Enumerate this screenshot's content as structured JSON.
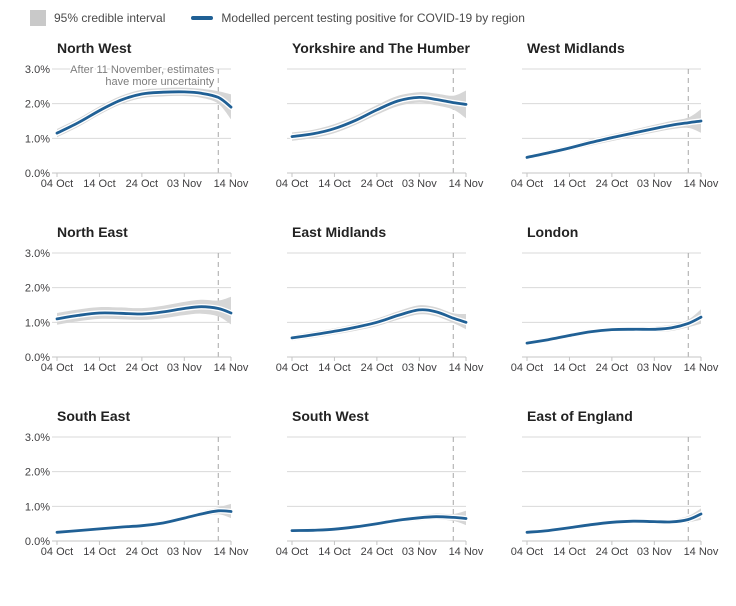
{
  "legend": {
    "interval_label": "95% credible interval",
    "line_label": "Modelled percent testing positive for COVID-19 by region"
  },
  "colors": {
    "line": "#206095",
    "line_casing": "#ffffff",
    "band": "#d6d6d6",
    "legend_square": "#c9c9c9",
    "grid": "#d9d9d9",
    "axis": "#c4c4c4",
    "tick": "#c4c4c4",
    "vline": "#a8a8a8",
    "tick_text": "#414042",
    "annotation_text": "#7d7d7d"
  },
  "chart_data": {
    "type": "line",
    "title": "Modelled percent testing positive for COVID-19 by region",
    "x_domain_days": [
      0,
      41
    ],
    "y_domain": [
      0,
      3
    ],
    "x_ticks": [
      {
        "day": 0,
        "label": "04 Oct"
      },
      {
        "day": 10,
        "label": "14 Oct"
      },
      {
        "day": 20,
        "label": "24 Oct"
      },
      {
        "day": 30,
        "label": "03 Nov"
      },
      {
        "day": 41,
        "label": "14 Nov"
      }
    ],
    "y_ticks": [
      {
        "value": 0,
        "label": "0.0%"
      },
      {
        "value": 1,
        "label": "1.0%"
      },
      {
        "value": 2,
        "label": "2.0%"
      },
      {
        "value": 3,
        "label": "3.0%"
      }
    ],
    "vline_day": 38,
    "annotation": {
      "panel_index": 0,
      "lines": [
        "After 11 November, estimates",
        "have more uncertainty"
      ]
    },
    "days": [
      0,
      5,
      10,
      15,
      20,
      25,
      30,
      34,
      38,
      41
    ],
    "panels": [
      {
        "title": "North West",
        "show_y_labels": true,
        "mean": [
          1.15,
          1.45,
          1.8,
          2.1,
          2.28,
          2.33,
          2.34,
          2.3,
          2.18,
          1.9
        ],
        "lower": [
          1.03,
          1.33,
          1.68,
          1.98,
          2.16,
          2.21,
          2.22,
          2.17,
          2.0,
          1.55
        ],
        "upper": [
          1.27,
          1.57,
          1.92,
          2.22,
          2.4,
          2.45,
          2.46,
          2.43,
          2.36,
          2.27
        ]
      },
      {
        "title": "Yorkshire and The Humber",
        "show_y_labels": false,
        "mean": [
          1.05,
          1.13,
          1.28,
          1.52,
          1.82,
          2.08,
          2.18,
          2.12,
          2.03,
          1.98
        ],
        "lower": [
          0.93,
          1.01,
          1.15,
          1.39,
          1.68,
          1.93,
          2.03,
          1.95,
          1.83,
          1.58
        ],
        "upper": [
          1.17,
          1.25,
          1.41,
          1.65,
          1.96,
          2.23,
          2.33,
          2.29,
          2.23,
          2.38
        ]
      },
      {
        "title": "West Midlands",
        "show_y_labels": false,
        "mean": [
          0.45,
          0.58,
          0.72,
          0.88,
          1.02,
          1.15,
          1.28,
          1.38,
          1.45,
          1.5
        ],
        "lower": [
          0.38,
          0.5,
          0.64,
          0.79,
          0.92,
          1.05,
          1.17,
          1.26,
          1.3,
          1.16
        ],
        "upper": [
          0.52,
          0.66,
          0.8,
          0.97,
          1.12,
          1.25,
          1.39,
          1.5,
          1.6,
          1.84
        ]
      },
      {
        "title": "North East",
        "show_y_labels": true,
        "mean": [
          1.1,
          1.2,
          1.27,
          1.26,
          1.24,
          1.3,
          1.4,
          1.45,
          1.4,
          1.27
        ],
        "lower": [
          0.93,
          1.03,
          1.1,
          1.09,
          1.07,
          1.12,
          1.21,
          1.25,
          1.17,
          0.94
        ],
        "upper": [
          1.27,
          1.37,
          1.44,
          1.43,
          1.41,
          1.48,
          1.59,
          1.65,
          1.63,
          1.74
        ]
      },
      {
        "title": "East Midlands",
        "show_y_labels": false,
        "mean": [
          0.55,
          0.64,
          0.74,
          0.86,
          1.0,
          1.2,
          1.36,
          1.3,
          1.12,
          1.0
        ],
        "lower": [
          0.47,
          0.55,
          0.65,
          0.76,
          0.89,
          1.08,
          1.23,
          1.17,
          0.98,
          0.8
        ],
        "upper": [
          0.63,
          0.73,
          0.83,
          0.96,
          1.11,
          1.32,
          1.49,
          1.43,
          1.26,
          1.24
        ]
      },
      {
        "title": "London",
        "show_y_labels": false,
        "mean": [
          0.4,
          0.5,
          0.62,
          0.73,
          0.79,
          0.8,
          0.8,
          0.84,
          0.97,
          1.15
        ],
        "lower": [
          0.34,
          0.43,
          0.55,
          0.66,
          0.72,
          0.73,
          0.72,
          0.75,
          0.86,
          0.96
        ],
        "upper": [
          0.46,
          0.57,
          0.69,
          0.8,
          0.86,
          0.87,
          0.88,
          0.93,
          1.08,
          1.38
        ]
      },
      {
        "title": "South East",
        "show_y_labels": true,
        "mean": [
          0.25,
          0.3,
          0.35,
          0.4,
          0.44,
          0.52,
          0.66,
          0.78,
          0.87,
          0.85
        ],
        "lower": [
          0.21,
          0.26,
          0.31,
          0.35,
          0.39,
          0.46,
          0.59,
          0.7,
          0.77,
          0.66
        ],
        "upper": [
          0.29,
          0.34,
          0.39,
          0.45,
          0.49,
          0.58,
          0.73,
          0.86,
          0.97,
          1.07
        ]
      },
      {
        "title": "South West",
        "show_y_labels": false,
        "mean": [
          0.3,
          0.31,
          0.34,
          0.41,
          0.5,
          0.6,
          0.67,
          0.7,
          0.68,
          0.65
        ],
        "lower": [
          0.25,
          0.26,
          0.29,
          0.35,
          0.44,
          0.53,
          0.59,
          0.62,
          0.58,
          0.46
        ],
        "upper": [
          0.35,
          0.36,
          0.39,
          0.47,
          0.56,
          0.67,
          0.75,
          0.79,
          0.78,
          0.87
        ]
      },
      {
        "title": "East of England",
        "show_y_labels": false,
        "mean": [
          0.25,
          0.3,
          0.38,
          0.47,
          0.54,
          0.57,
          0.56,
          0.55,
          0.62,
          0.78
        ],
        "lower": [
          0.21,
          0.26,
          0.33,
          0.41,
          0.48,
          0.51,
          0.5,
          0.48,
          0.54,
          0.61
        ],
        "upper": [
          0.29,
          0.34,
          0.43,
          0.53,
          0.6,
          0.63,
          0.62,
          0.62,
          0.72,
          0.94
        ]
      }
    ]
  }
}
